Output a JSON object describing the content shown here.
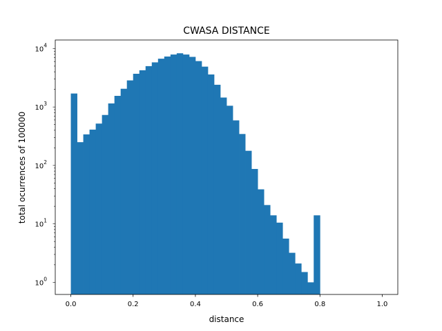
{
  "chart_data": {
    "type": "bar",
    "title": "CWASA DISTANCE",
    "xlabel": "distance",
    "ylabel": "total ocurrences of 100000",
    "yscale": "log",
    "xlim": [
      -0.05,
      1.05
    ],
    "ylim": [
      0.62,
      14000
    ],
    "x_ticks": [
      {
        "value": 0.0,
        "label": "0.0"
      },
      {
        "value": 0.2,
        "label": "0.2"
      },
      {
        "value": 0.4,
        "label": "0.4"
      },
      {
        "value": 0.6,
        "label": "0.6"
      },
      {
        "value": 0.8,
        "label": "0.8"
      },
      {
        "value": 1.0,
        "label": "1.0"
      }
    ],
    "y_ticks": [
      {
        "value": 1,
        "base": "10",
        "exp": "0"
      },
      {
        "value": 10,
        "base": "10",
        "exp": "1"
      },
      {
        "value": 100,
        "base": "10",
        "exp": "2"
      },
      {
        "value": 1000,
        "base": "10",
        "exp": "3"
      },
      {
        "value": 10000,
        "base": "10",
        "exp": "4"
      }
    ],
    "bin_start": 0.0,
    "bin_width": 0.02,
    "values": [
      1700,
      250,
      340,
      410,
      520,
      730,
      1150,
      1550,
      2050,
      2850,
      3700,
      4250,
      5000,
      5800,
      6700,
      7300,
      7900,
      8300,
      7900,
      7200,
      6100,
      4900,
      3600,
      2400,
      1450,
      1050,
      590,
      345,
      178,
      87,
      39,
      21,
      14,
      10.5,
      5.6,
      3.2,
      2.1,
      1.5,
      1.0,
      14
    ],
    "colors": {
      "bar": "#1f77b4",
      "axis": "#000000",
      "background": "#ffffff"
    }
  }
}
